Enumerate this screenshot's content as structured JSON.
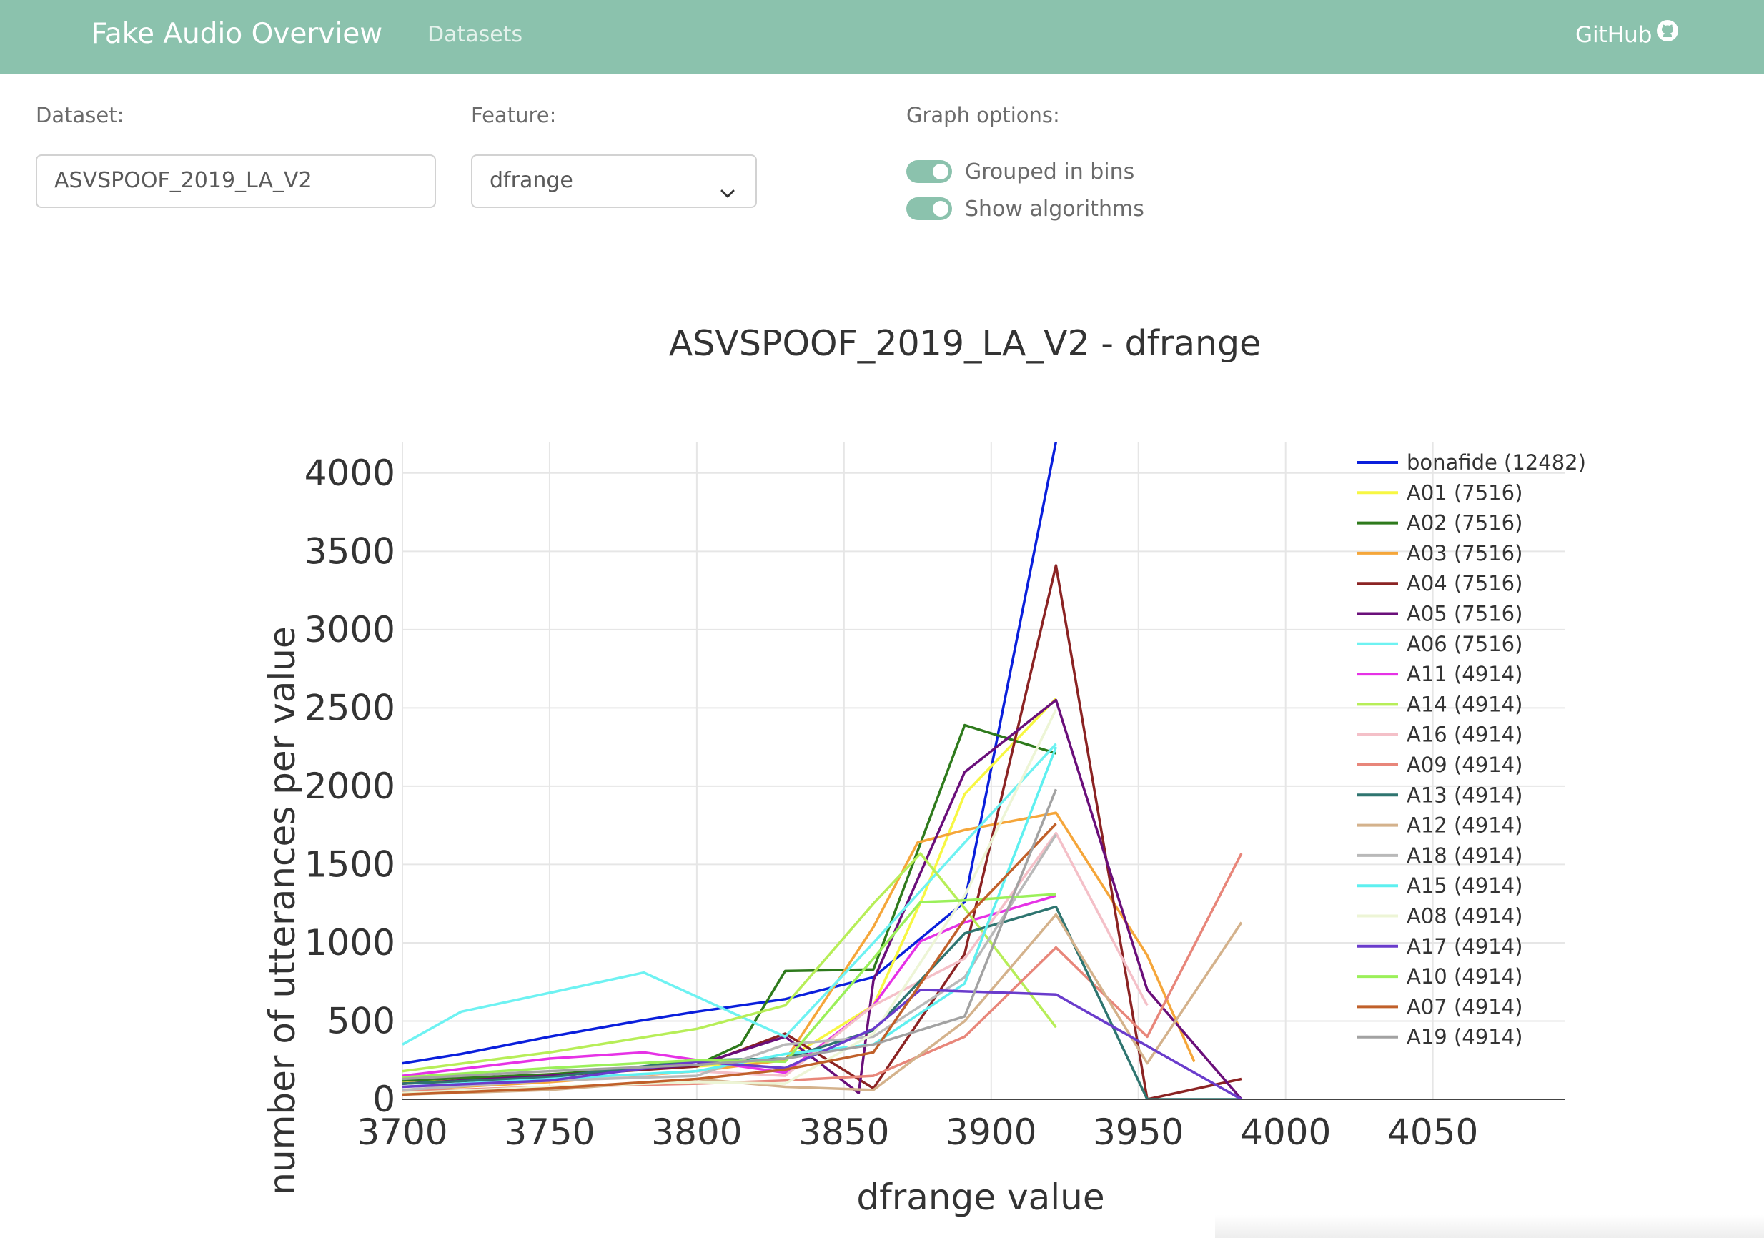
{
  "navbar": {
    "brand": "Fake Audio Overview",
    "links": [
      "Datasets"
    ],
    "github_label": "GitHub",
    "github_icon": "github-icon",
    "background": "#8bc2ad"
  },
  "controls": {
    "dataset_label": "Dataset:",
    "dataset_value": "ASVSPOOF_2019_LA_V2",
    "feature_label": "Feature:",
    "feature_value": "dfrange",
    "graph_options_label": "Graph options:",
    "toggles": [
      {
        "label": "Grouped in bins",
        "on": true
      },
      {
        "label": "Show algorithms",
        "on": true
      }
    ]
  },
  "chart_data": {
    "type": "line",
    "title": "ASVSPOOF_2019_LA_V2 - dfrange",
    "xlabel": "dfrange value",
    "ylabel": "number of utterances per value",
    "xlim": [
      3700,
      4095
    ],
    "ylim": [
      0,
      4200
    ],
    "xticks": [
      3700,
      3750,
      3800,
      3850,
      3900,
      3950,
      4000,
      4050
    ],
    "yticks": [
      0,
      500,
      1000,
      1500,
      2000,
      2500,
      3000,
      3500,
      4000
    ],
    "grid": true,
    "legend_position": "right",
    "series": [
      {
        "name": "bonafide (12482)",
        "color": "#0a1fdc",
        "x": [
          3700,
          3720,
          3750,
          3780,
          3800,
          3830,
          3860,
          3891,
          3922
        ],
        "y": [
          230,
          290,
          400,
          500,
          560,
          640,
          780,
          1260,
          4200
        ]
      },
      {
        "name": "A01 (7516)",
        "color": "#f7f742",
        "x": [
          3700,
          3750,
          3800,
          3830,
          3860,
          3877,
          3891,
          3922
        ],
        "y": [
          110,
          160,
          210,
          250,
          600,
          1300,
          1950,
          2560
        ]
      },
      {
        "name": "A02 (7516)",
        "color": "#2e7a1c",
        "x": [
          3700,
          3750,
          3800,
          3815,
          3830,
          3860,
          3891,
          3922
        ],
        "y": [
          120,
          160,
          220,
          350,
          820,
          830,
          2390,
          2210
        ]
      },
      {
        "name": "A03 (7516)",
        "color": "#f5a63a",
        "x": [
          3700,
          3750,
          3800,
          3830,
          3860,
          3875,
          3891,
          3922,
          3953,
          3969
        ],
        "y": [
          60,
          110,
          180,
          250,
          1100,
          1640,
          1720,
          1830,
          920,
          240
        ]
      },
      {
        "name": "A04 (7516)",
        "color": "#8b2323",
        "x": [
          3700,
          3750,
          3800,
          3830,
          3860,
          3891,
          3922,
          3953,
          3985
        ],
        "y": [
          100,
          150,
          210,
          420,
          70,
          930,
          3410,
          0,
          130
        ]
      },
      {
        "name": "A05 (7516)",
        "color": "#6a0f7a",
        "x": [
          3700,
          3750,
          3800,
          3830,
          3855,
          3860,
          3891,
          3922,
          3953,
          3985
        ],
        "y": [
          100,
          150,
          220,
          400,
          40,
          760,
          2090,
          2550,
          700,
          0
        ]
      },
      {
        "name": "A06 (7516)",
        "color": "#6ef2f2",
        "x": [
          3700,
          3720,
          3750,
          3782,
          3830,
          3860,
          3891,
          3922
        ],
        "y": [
          350,
          560,
          680,
          810,
          400,
          1000,
          1640,
          2270
        ]
      },
      {
        "name": "A11 (4914)",
        "color": "#e632e6",
        "x": [
          3700,
          3750,
          3782,
          3830,
          3860,
          3876,
          3891,
          3922
        ],
        "y": [
          150,
          260,
          300,
          170,
          600,
          1010,
          1130,
          1300
        ]
      },
      {
        "name": "A14 (4914)",
        "color": "#b7ee58",
        "x": [
          3700,
          3750,
          3800,
          3830,
          3860,
          3876,
          3891,
          3922
        ],
        "y": [
          180,
          300,
          450,
          600,
          1250,
          1570,
          1220,
          460
        ]
      },
      {
        "name": "A16 (4914)",
        "color": "#f4c0c8",
        "x": [
          3700,
          3750,
          3800,
          3830,
          3860,
          3891,
          3922,
          3953
        ],
        "y": [
          80,
          120,
          180,
          150,
          600,
          900,
          1700,
          600
        ]
      },
      {
        "name": "A09 (4914)",
        "color": "#e8867a",
        "x": [
          3700,
          3750,
          3800,
          3830,
          3860,
          3891,
          3922,
          3953,
          3985
        ],
        "y": [
          50,
          80,
          100,
          120,
          150,
          400,
          970,
          400,
          1570
        ]
      },
      {
        "name": "A13 (4914)",
        "color": "#2f7570",
        "x": [
          3700,
          3750,
          3800,
          3830,
          3860,
          3891,
          3922,
          3953,
          3985
        ],
        "y": [
          100,
          140,
          250,
          260,
          440,
          1060,
          1230,
          0,
          0
        ]
      },
      {
        "name": "A12 (4914)",
        "color": "#d4b28c",
        "x": [
          3700,
          3750,
          3800,
          3830,
          3860,
          3891,
          3922,
          3953,
          3985
        ],
        "y": [
          30,
          60,
          130,
          80,
          60,
          500,
          1180,
          230,
          1130
        ]
      },
      {
        "name": "A18 (4914)",
        "color": "#b9b9b9",
        "x": [
          3700,
          3750,
          3800,
          3830,
          3860,
          3891,
          3922
        ],
        "y": [
          60,
          120,
          150,
          350,
          400,
          780,
          1690
        ]
      },
      {
        "name": "A15 (4914)",
        "color": "#5ef0f0",
        "x": [
          3700,
          3750,
          3800,
          3830,
          3860,
          3891,
          3922
        ],
        "y": [
          80,
          130,
          180,
          290,
          350,
          740,
          2250
        ]
      },
      {
        "name": "A08 (4914)",
        "color": "#edf5d6",
        "x": [
          3700,
          3750,
          3800,
          3830,
          3860,
          3891,
          3922
        ],
        "y": [
          40,
          80,
          110,
          100,
          420,
          1300,
          2490
        ]
      },
      {
        "name": "A17 (4914)",
        "color": "#6a3ccc",
        "x": [
          3700,
          3750,
          3800,
          3830,
          3860,
          3876,
          3891,
          3922,
          3985
        ],
        "y": [
          80,
          120,
          240,
          200,
          450,
          700,
          690,
          670,
          0
        ]
      },
      {
        "name": "A10 (4914)",
        "color": "#9bf05a",
        "x": [
          3700,
          3750,
          3800,
          3830,
          3860,
          3876,
          3891,
          3922
        ],
        "y": [
          140,
          200,
          250,
          240,
          900,
          1260,
          1270,
          1310
        ]
      },
      {
        "name": "A07 (4914)",
        "color": "#c0602a",
        "x": [
          3700,
          3750,
          3800,
          3830,
          3860,
          3891,
          3922
        ],
        "y": [
          30,
          70,
          130,
          190,
          300,
          1150,
          1760
        ]
      },
      {
        "name": "A19 (4914)",
        "color": "#a2a2a2",
        "x": [
          3700,
          3750,
          3800,
          3830,
          3860,
          3891,
          3922
        ],
        "y": [
          130,
          180,
          220,
          260,
          350,
          530,
          1980
        ]
      }
    ]
  }
}
